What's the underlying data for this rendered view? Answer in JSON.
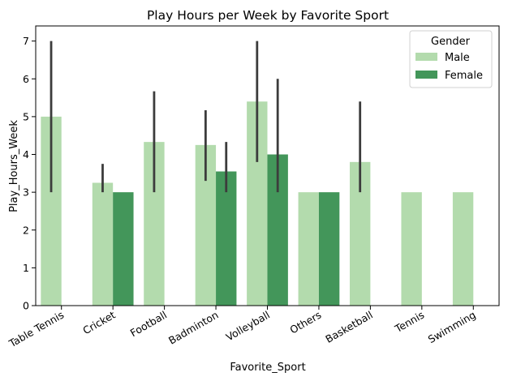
{
  "chart_data": {
    "type": "bar",
    "title": "Play Hours per Week by Favorite Sport",
    "xlabel": "Favorite_Sport",
    "ylabel": "Play_Hours_Week",
    "ylim": [
      0,
      7.4
    ],
    "yticks": [
      0,
      1,
      2,
      3,
      4,
      5,
      6,
      7
    ],
    "grid": false,
    "categories": [
      "Table Tennis",
      "Cricket",
      "Football",
      "Badminton",
      "Volleyball",
      "Others",
      "Basketball",
      "Tennis",
      "Swimming"
    ],
    "legend": {
      "title": "Gender",
      "placement": "top-right"
    },
    "series": [
      {
        "name": "Male",
        "color": "#b3dbad",
        "values": [
          5.0,
          3.25,
          4.33,
          4.25,
          5.4,
          3.0,
          3.8,
          3.0,
          3.0
        ],
        "ci": [
          [
            3.0,
            7.0
          ],
          [
            3.0,
            3.75
          ],
          [
            3.0,
            5.67
          ],
          [
            3.3,
            5.17
          ],
          [
            3.8,
            7.0
          ],
          null,
          [
            3.0,
            5.4
          ],
          null,
          null
        ]
      },
      {
        "name": "Female",
        "color": "#43965a",
        "values": [
          null,
          3.0,
          null,
          3.55,
          4.0,
          3.0,
          null,
          null,
          null
        ],
        "ci": [
          null,
          null,
          null,
          [
            3.0,
            4.33
          ],
          [
            3.0,
            6.0
          ],
          null,
          null,
          null,
          null
        ]
      }
    ],
    "error_bar_color": "#3c3c3c"
  }
}
